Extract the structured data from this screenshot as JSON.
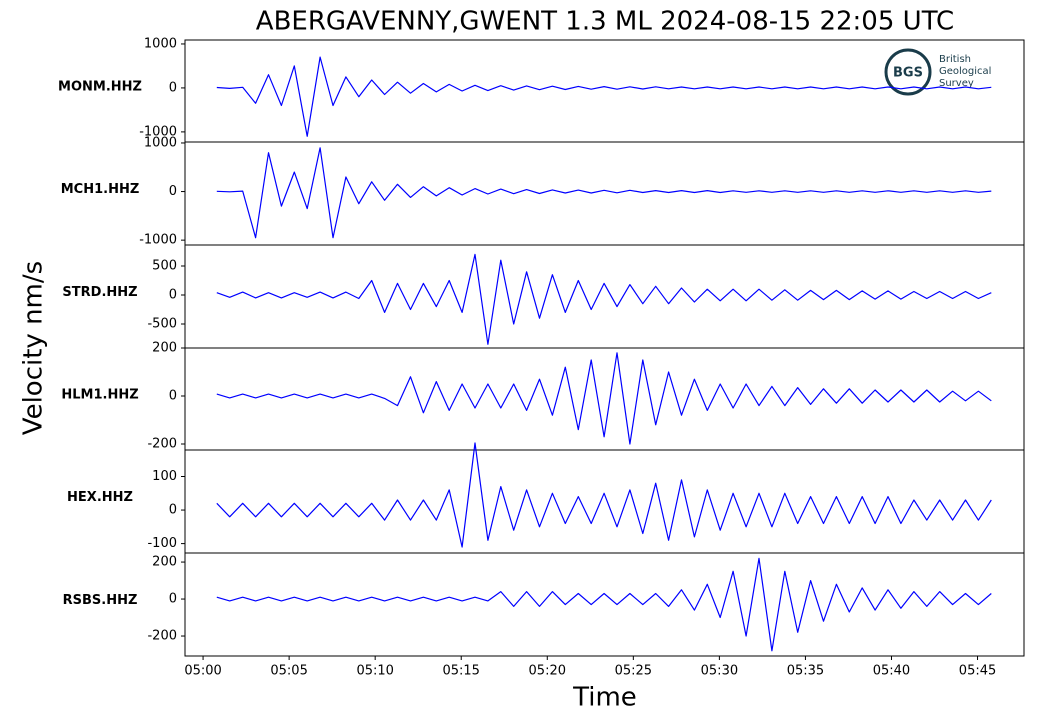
{
  "title": "ABERGAVENNY,GWENT 1.3 ML   2024-08-15 22:05 UTC",
  "ylabel": "Velocity nm/s",
  "xlabel": "Time",
  "logo": {
    "abbr": "BGS",
    "lines": [
      "British",
      "Geological",
      "Survey"
    ]
  },
  "xlim": [
    -1.05,
    47.7
  ],
  "xticks": [
    {
      "value": 0,
      "label": "05:00"
    },
    {
      "value": 5,
      "label": "05:05"
    },
    {
      "value": 10,
      "label": "05:10"
    },
    {
      "value": 15,
      "label": "05:15"
    },
    {
      "value": 20,
      "label": "05:20"
    },
    {
      "value": 25,
      "label": "05:25"
    },
    {
      "value": 30,
      "label": "05:30"
    },
    {
      "value": 35,
      "label": "05:35"
    },
    {
      "value": 40,
      "label": "05:40"
    },
    {
      "value": 45,
      "label": "05:45"
    }
  ],
  "x": [
    0.8,
    1.55,
    2.3,
    3.05,
    3.8,
    4.55,
    5.3,
    6.05,
    6.8,
    7.55,
    8.3,
    9.05,
    9.8,
    10.55,
    11.3,
    12.05,
    12.8,
    13.55,
    14.3,
    15.05,
    15.8,
    16.55,
    17.3,
    18.05,
    18.8,
    19.55,
    20.3,
    21.05,
    21.8,
    22.55,
    23.3,
    24.05,
    24.8,
    25.55,
    26.3,
    27.05,
    27.8,
    28.55,
    29.3,
    30.05,
    30.8,
    31.55,
    32.3,
    33.05,
    33.8,
    34.55,
    35.3,
    36.05,
    36.8,
    37.55,
    38.3,
    39.05,
    39.8,
    40.55,
    41.3,
    42.05,
    42.8,
    43.55,
    44.3,
    45.05,
    45.8
  ],
  "chart_data": [
    {
      "type": "line",
      "ylabel": "MONM.HHZ",
      "color": "#0000ff",
      "ylim": [
        -1230,
        1090
      ],
      "yticks": [
        -1000,
        0,
        1000
      ],
      "values": [
        10,
        -10,
        15,
        -350,
        300,
        -400,
        500,
        -1100,
        700,
        -400,
        250,
        -200,
        180,
        -150,
        130,
        -120,
        100,
        -90,
        80,
        -70,
        60,
        -60,
        50,
        -50,
        45,
        -40,
        40,
        -35,
        35,
        -30,
        30,
        -30,
        25,
        -25,
        25,
        -20,
        20,
        -20,
        20,
        -20,
        20,
        -20,
        20,
        -20,
        20,
        -20,
        20,
        -20,
        20,
        -20,
        20,
        -20,
        20,
        -20,
        20,
        -20,
        20,
        -20,
        20,
        -20,
        15
      ]
    },
    {
      "type": "line",
      "ylabel": "MCH1.HHZ",
      "color": "#0000ff",
      "ylim": [
        -1100,
        1020
      ],
      "yticks": [
        -1000,
        0,
        1000
      ],
      "values": [
        5,
        -5,
        10,
        -950,
        800,
        -300,
        400,
        -350,
        900,
        -950,
        300,
        -250,
        200,
        -180,
        150,
        -120,
        100,
        -90,
        80,
        -70,
        60,
        -50,
        50,
        -45,
        40,
        -40,
        35,
        -30,
        30,
        -30,
        25,
        -25,
        25,
        -20,
        20,
        -20,
        20,
        -20,
        20,
        -20,
        15,
        -15,
        15,
        -15,
        15,
        -15,
        15,
        -15,
        15,
        -15,
        15,
        -15,
        15,
        -15,
        15,
        -15,
        15,
        -15,
        15,
        -15,
        10
      ]
    },
    {
      "type": "line",
      "ylabel": "STRD.HHZ",
      "color": "#0000ff",
      "ylim": [
        -914,
        862
      ],
      "yticks": [
        -500,
        0,
        500
      ],
      "values": [
        40,
        -40,
        50,
        -50,
        40,
        -50,
        40,
        -40,
        50,
        -50,
        50,
        -60,
        250,
        -300,
        200,
        -250,
        200,
        -200,
        250,
        -300,
        700,
        -850,
        600,
        -500,
        400,
        -400,
        350,
        -300,
        250,
        -250,
        200,
        -200,
        180,
        -150,
        150,
        -150,
        120,
        -120,
        100,
        -100,
        100,
        -100,
        100,
        -90,
        90,
        -90,
        80,
        -80,
        80,
        -80,
        70,
        -70,
        70,
        -70,
        60,
        -60,
        60,
        -60,
        60,
        -60,
        40
      ]
    },
    {
      "type": "line",
      "ylabel": "HLM1.HHZ",
      "color": "#0000ff",
      "ylim": [
        -225,
        200
      ],
      "yticks": [
        -200,
        0,
        200
      ],
      "values": [
        8,
        -8,
        8,
        -8,
        8,
        -8,
        8,
        -8,
        8,
        -8,
        8,
        -8,
        8,
        -10,
        -40,
        80,
        -70,
        60,
        -60,
        50,
        -50,
        50,
        -50,
        50,
        -60,
        70,
        -80,
        120,
        -140,
        150,
        -170,
        180,
        -200,
        150,
        -120,
        100,
        -80,
        70,
        -60,
        50,
        -50,
        50,
        -40,
        40,
        -40,
        35,
        -35,
        30,
        -30,
        30,
        -30,
        25,
        -25,
        25,
        -25,
        25,
        -25,
        20,
        -20,
        20,
        -20
      ]
    },
    {
      "type": "line",
      "ylabel": "HEX.HHZ",
      "color": "#0000ff",
      "ylim": [
        -128,
        179
      ],
      "yticks": [
        -100,
        0,
        100
      ],
      "values": [
        20,
        -20,
        20,
        -20,
        20,
        -20,
        20,
        -20,
        20,
        -20,
        20,
        -20,
        20,
        -30,
        30,
        -30,
        30,
        -30,
        60,
        -110,
        200,
        -90,
        70,
        -60,
        60,
        -50,
        50,
        -40,
        40,
        -40,
        50,
        -50,
        60,
        -70,
        80,
        -90,
        90,
        -80,
        60,
        -60,
        50,
        -50,
        50,
        -50,
        50,
        -40,
        40,
        -40,
        40,
        -40,
        40,
        -40,
        40,
        -40,
        30,
        -30,
        30,
        -30,
        30,
        -30,
        30
      ]
    },
    {
      "type": "line",
      "ylabel": "RSBS.HHZ",
      "color": "#0000ff",
      "ylim": [
        -308,
        249
      ],
      "yticks": [
        -200,
        0,
        200
      ],
      "values": [
        10,
        -10,
        10,
        -10,
        10,
        -10,
        10,
        -10,
        10,
        -10,
        10,
        -10,
        10,
        -10,
        10,
        -10,
        10,
        -10,
        10,
        -10,
        10,
        -10,
        40,
        -40,
        40,
        -40,
        40,
        -30,
        30,
        -30,
        30,
        -30,
        30,
        -30,
        30,
        -40,
        50,
        -60,
        80,
        -100,
        150,
        -200,
        220,
        -280,
        150,
        -180,
        100,
        -120,
        80,
        -70,
        60,
        -60,
        50,
        -50,
        40,
        -40,
        40,
        -30,
        30,
        -30,
        30
      ]
    }
  ]
}
